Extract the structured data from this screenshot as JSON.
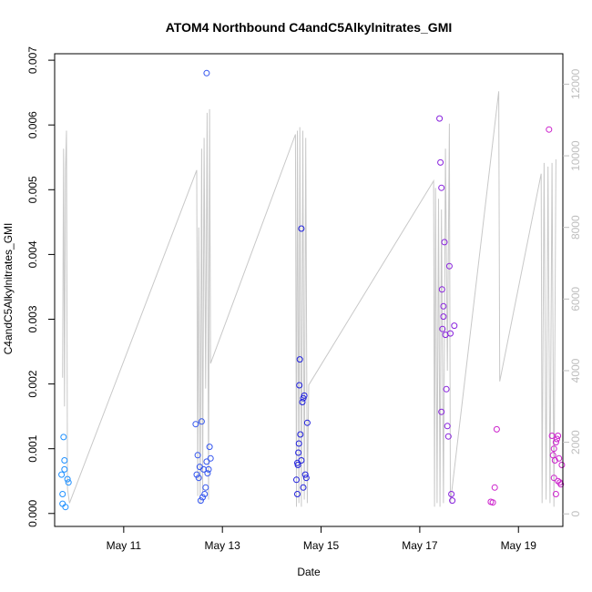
{
  "chart_data": {
    "type": "scatter",
    "title": "ATOM4 Northbound C4andC5Alkylnitrates_GMI",
    "xlabel": "Date",
    "ylabel": "C4andC5Alkylnitrates_GMI",
    "x_ticks": [
      "May 11",
      "May 13",
      "May 15",
      "May 17",
      "May 19"
    ],
    "y_ticks": [
      "0.000",
      "0.001",
      "0.002",
      "0.003",
      "0.004",
      "0.005",
      "0.006",
      "0.007"
    ],
    "y2_ticks": [
      "0",
      "2000",
      "4000",
      "6000",
      "8000",
      "10000",
      "12000"
    ],
    "xlim": [
      "May 9.6",
      "May 19.9"
    ],
    "ylim": [
      -0.0002,
      0.0071
    ],
    "y2lim": [
      -350,
      12850
    ],
    "grid": false,
    "secondary_line": {
      "color": "#c8c8c8",
      "points": [
        [
          9.76,
          3800
        ],
        [
          9.78,
          10200
        ],
        [
          9.8,
          3000
        ],
        [
          9.82,
          9600
        ],
        [
          9.84,
          10700
        ],
        [
          9.86,
          700
        ],
        [
          9.9,
          300
        ],
        [
          12.48,
          9600
        ],
        [
          12.5,
          500
        ],
        [
          12.52,
          8000
        ],
        [
          12.55,
          300
        ],
        [
          12.58,
          10200
        ],
        [
          12.6,
          600
        ],
        [
          12.63,
          10500
        ],
        [
          12.66,
          3500
        ],
        [
          12.69,
          11200
        ],
        [
          12.72,
          400
        ],
        [
          12.74,
          11300
        ],
        [
          12.76,
          4200
        ],
        [
          14.48,
          10600
        ],
        [
          14.5,
          200
        ],
        [
          14.52,
          10700
        ],
        [
          14.55,
          300
        ],
        [
          14.57,
          10800
        ],
        [
          14.6,
          200
        ],
        [
          14.63,
          10700
        ],
        [
          14.66,
          400
        ],
        [
          14.69,
          10500
        ],
        [
          14.72,
          300
        ],
        [
          14.75,
          3600
        ],
        [
          17.28,
          9300
        ],
        [
          17.3,
          200
        ],
        [
          17.32,
          9100
        ],
        [
          17.35,
          300
        ],
        [
          17.38,
          8800
        ],
        [
          17.41,
          200
        ],
        [
          17.44,
          8500
        ],
        [
          17.48,
          300
        ],
        [
          17.52,
          10200
        ],
        [
          17.56,
          4000
        ],
        [
          17.6,
          10900
        ],
        [
          17.62,
          300
        ],
        [
          18.6,
          11800
        ],
        [
          18.62,
          3700
        ],
        [
          19.46,
          9500
        ],
        [
          19.48,
          300
        ],
        [
          19.52,
          9800
        ],
        [
          19.56,
          400
        ],
        [
          19.6,
          9700
        ],
        [
          19.64,
          300
        ],
        [
          19.68,
          9800
        ],
        [
          19.72,
          200
        ],
        [
          19.76,
          9900
        ]
      ]
    },
    "series": [
      {
        "color": "#1e90ff",
        "points": [
          [
            9.74,
            0.0006
          ],
          [
            9.76,
            0.00015
          ],
          [
            9.78,
            0.00118
          ],
          [
            9.8,
            0.00082
          ],
          [
            9.8,
            0.00068
          ],
          [
            9.82,
            0.0001
          ],
          [
            9.86,
            0.00053
          ],
          [
            9.88,
            0.00048
          ],
          [
            9.76,
            0.0003
          ]
        ]
      },
      {
        "color": "#3355ee",
        "points": [
          [
            12.46,
            0.00138
          ],
          [
            12.48,
            0.0006
          ],
          [
            12.5,
            0.0009
          ],
          [
            12.52,
            0.00055
          ],
          [
            12.54,
            0.00072
          ],
          [
            12.56,
            0.0002
          ],
          [
            12.58,
            0.00142
          ],
          [
            12.6,
            0.00025
          ],
          [
            12.62,
            0.00068
          ],
          [
            12.64,
            0.0003
          ],
          [
            12.66,
            0.0004
          ],
          [
            12.68,
            0.0008
          ],
          [
            12.7,
            0.00062
          ],
          [
            12.72,
            0.00068
          ],
          [
            12.74,
            0.00103
          ],
          [
            12.76,
            0.00085
          ],
          [
            12.68,
            0.0068
          ]
        ]
      },
      {
        "color": "#2020dd",
        "points": [
          [
            14.5,
            0.00052
          ],
          [
            14.52,
            0.00078
          ],
          [
            14.53,
            0.00075
          ],
          [
            14.54,
            0.00094
          ],
          [
            14.55,
            0.00108
          ],
          [
            14.56,
            0.00198
          ],
          [
            14.57,
            0.00238
          ],
          [
            14.58,
            0.00122
          ],
          [
            14.6,
            0.0044
          ],
          [
            14.62,
            0.00172
          ],
          [
            14.64,
            0.00178
          ],
          [
            14.66,
            0.00182
          ],
          [
            14.68,
            0.0006
          ],
          [
            14.7,
            0.00055
          ],
          [
            14.72,
            0.0014
          ],
          [
            14.52,
            0.0003
          ],
          [
            14.64,
            0.0004
          ],
          [
            14.6,
            0.00082
          ]
        ]
      },
      {
        "color": "#8822dd",
        "points": [
          [
            17.4,
            0.0061
          ],
          [
            17.42,
            0.00542
          ],
          [
            17.44,
            0.00503
          ],
          [
            17.45,
            0.00346
          ],
          [
            17.46,
            0.00285
          ],
          [
            17.48,
            0.0032
          ],
          [
            17.5,
            0.00419
          ],
          [
            17.52,
            0.00276
          ],
          [
            17.54,
            0.00192
          ],
          [
            17.56,
            0.00135
          ],
          [
            17.58,
            0.00119
          ],
          [
            17.6,
            0.00382
          ],
          [
            17.62,
            0.00278
          ],
          [
            17.64,
            0.0003
          ],
          [
            17.66,
            0.0002
          ],
          [
            17.7,
            0.0029
          ],
          [
            17.44,
            0.00157
          ],
          [
            17.48,
            0.00304
          ]
        ]
      },
      {
        "color": "#cc22cc",
        "points": [
          [
            18.44,
            0.00018
          ],
          [
            18.48,
            0.00017
          ],
          [
            18.52,
            0.0004
          ],
          [
            18.56,
            0.0013
          ],
          [
            19.62,
            0.00593
          ],
          [
            19.68,
            0.0012
          ],
          [
            19.7,
            0.0009
          ],
          [
            19.72,
            0.001
          ],
          [
            19.74,
            0.00082
          ],
          [
            19.76,
            0.0011
          ],
          [
            19.78,
            0.00115
          ],
          [
            19.8,
            0.0005
          ],
          [
            19.82,
            0.00085
          ],
          [
            19.84,
            0.00048
          ],
          [
            19.86,
            0.00045
          ],
          [
            19.88,
            0.00075
          ],
          [
            19.72,
            0.00055
          ],
          [
            19.76,
            0.0003
          ],
          [
            19.8,
            0.0012
          ]
        ]
      }
    ]
  }
}
